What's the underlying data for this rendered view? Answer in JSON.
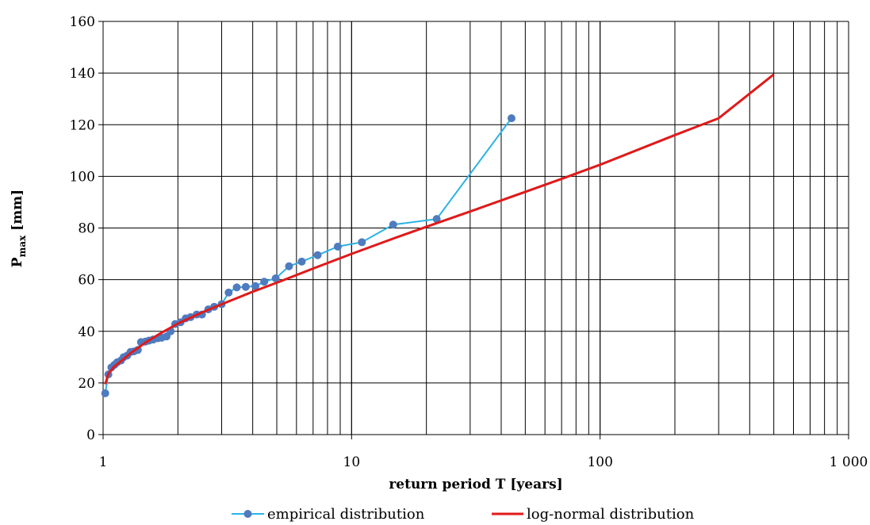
{
  "chart_data": {
    "type": "scatter",
    "title": "",
    "xlabel": "return period T [years]",
    "ylabel": {
      "main": "P",
      "sub": "max",
      "rest": " [mm]"
    },
    "x_scale": "log",
    "xlim": [
      1,
      1000
    ],
    "ylim": [
      0,
      160
    ],
    "x_ticks": [
      1,
      10,
      100,
      1000
    ],
    "x_tick_labels": [
      "1",
      "10",
      "100",
      "1 000"
    ],
    "y_ticks": [
      0,
      20,
      40,
      60,
      80,
      100,
      120,
      140,
      160
    ],
    "y_tick_labels": [
      "0",
      "20",
      "40",
      "60",
      "80",
      "100",
      "120",
      "140",
      "160"
    ],
    "grid": {
      "horizontal": true,
      "vertical_log_minor": true
    },
    "legend": {
      "placement": "bottom"
    },
    "series": [
      {
        "name": "empirical distribution",
        "kind": "line+markers",
        "color": "#2DB2E5",
        "marker_color": "#4F7BBF",
        "points": [
          [
            1.02,
            16.0
          ],
          [
            1.05,
            23.3
          ],
          [
            1.08,
            26.0
          ],
          [
            1.11,
            27.0
          ],
          [
            1.14,
            28.0
          ],
          [
            1.18,
            28.7
          ],
          [
            1.21,
            30.0
          ],
          [
            1.25,
            30.6
          ],
          [
            1.29,
            32.0
          ],
          [
            1.33,
            32.2
          ],
          [
            1.38,
            32.8
          ],
          [
            1.42,
            35.8
          ],
          [
            1.48,
            36.0
          ],
          [
            1.53,
            36.4
          ],
          [
            1.59,
            36.8
          ],
          [
            1.66,
            37.3
          ],
          [
            1.72,
            37.5
          ],
          [
            1.8,
            38.0
          ],
          [
            1.87,
            40.0
          ],
          [
            1.95,
            42.8
          ],
          [
            2.05,
            43.5
          ],
          [
            2.15,
            45.0
          ],
          [
            2.25,
            45.5
          ],
          [
            2.38,
            46.5
          ],
          [
            2.5,
            46.5
          ],
          [
            2.65,
            48.5
          ],
          [
            2.8,
            49.5
          ],
          [
            3.0,
            50.5
          ],
          [
            3.2,
            55.0
          ],
          [
            3.45,
            57.0
          ],
          [
            3.75,
            57.2
          ],
          [
            4.1,
            57.5
          ],
          [
            4.45,
            59.2
          ],
          [
            4.95,
            60.5
          ],
          [
            5.6,
            65.2
          ],
          [
            6.3,
            67.0
          ],
          [
            7.3,
            69.5
          ],
          [
            8.8,
            72.8
          ],
          [
            11.0,
            74.5
          ],
          [
            14.7,
            81.3
          ],
          [
            22.0,
            83.5
          ],
          [
            44.0,
            122.5
          ]
        ]
      },
      {
        "name": "log-normal distribution",
        "kind": "line",
        "color": "#E01A1A",
        "points": [
          [
            1.02,
            19.5
          ],
          [
            1.05,
            23.5
          ],
          [
            1.1,
            26.0
          ],
          [
            1.2,
            29.0
          ],
          [
            1.3,
            31.8
          ],
          [
            1.5,
            36.0
          ],
          [
            1.7,
            39.2
          ],
          [
            2.0,
            43.0
          ],
          [
            2.5,
            47.3
          ],
          [
            3.0,
            50.5
          ],
          [
            4.0,
            55.3
          ],
          [
            5.0,
            58.8
          ],
          [
            7.0,
            64.3
          ],
          [
            10.0,
            70.0
          ],
          [
            15.0,
            76.2
          ],
          [
            20.0,
            80.5
          ],
          [
            30.0,
            86.4
          ],
          [
            50.0,
            94.0
          ],
          [
            70.0,
            99.0
          ],
          [
            100.0,
            104.5
          ],
          [
            200.0,
            116.0
          ],
          [
            300.0,
            122.5
          ],
          [
            500.0,
            139.5
          ]
        ]
      }
    ]
  }
}
